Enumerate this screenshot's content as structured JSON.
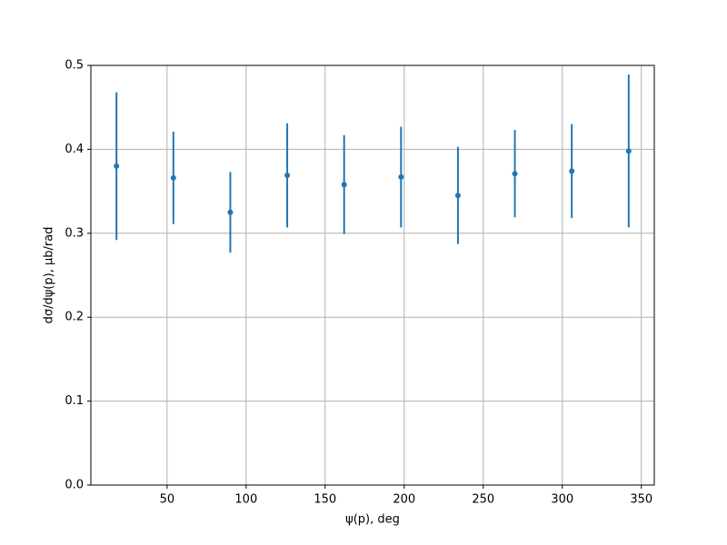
{
  "chart_data": {
    "type": "errorbar",
    "x_label": "ψ(p), deg",
    "y_label": "dσ/dψ(p), μb/rad",
    "x": [
      18,
      54,
      90,
      126,
      162,
      198,
      234,
      270,
      306,
      342
    ],
    "series": [
      {
        "color": "#1f77b4",
        "values": [
          0.38,
          0.366,
          0.325,
          0.369,
          0.358,
          0.367,
          0.345,
          0.371,
          0.374,
          0.398
        ],
        "errors": [
          0.088,
          0.055,
          0.048,
          0.062,
          0.059,
          0.06,
          0.058,
          0.052,
          0.056,
          0.091
        ]
      }
    ],
    "xlim": [
      1.8,
      358.2
    ],
    "xticks": [
      50,
      100,
      150,
      200,
      250,
      300,
      350
    ],
    "ylim": [
      0,
      0.5
    ],
    "yticks": [
      {
        "value": 0,
        "label": "0.0"
      },
      0.1,
      0.2,
      0.3,
      0.4,
      0.5
    ],
    "grid": true
  }
}
